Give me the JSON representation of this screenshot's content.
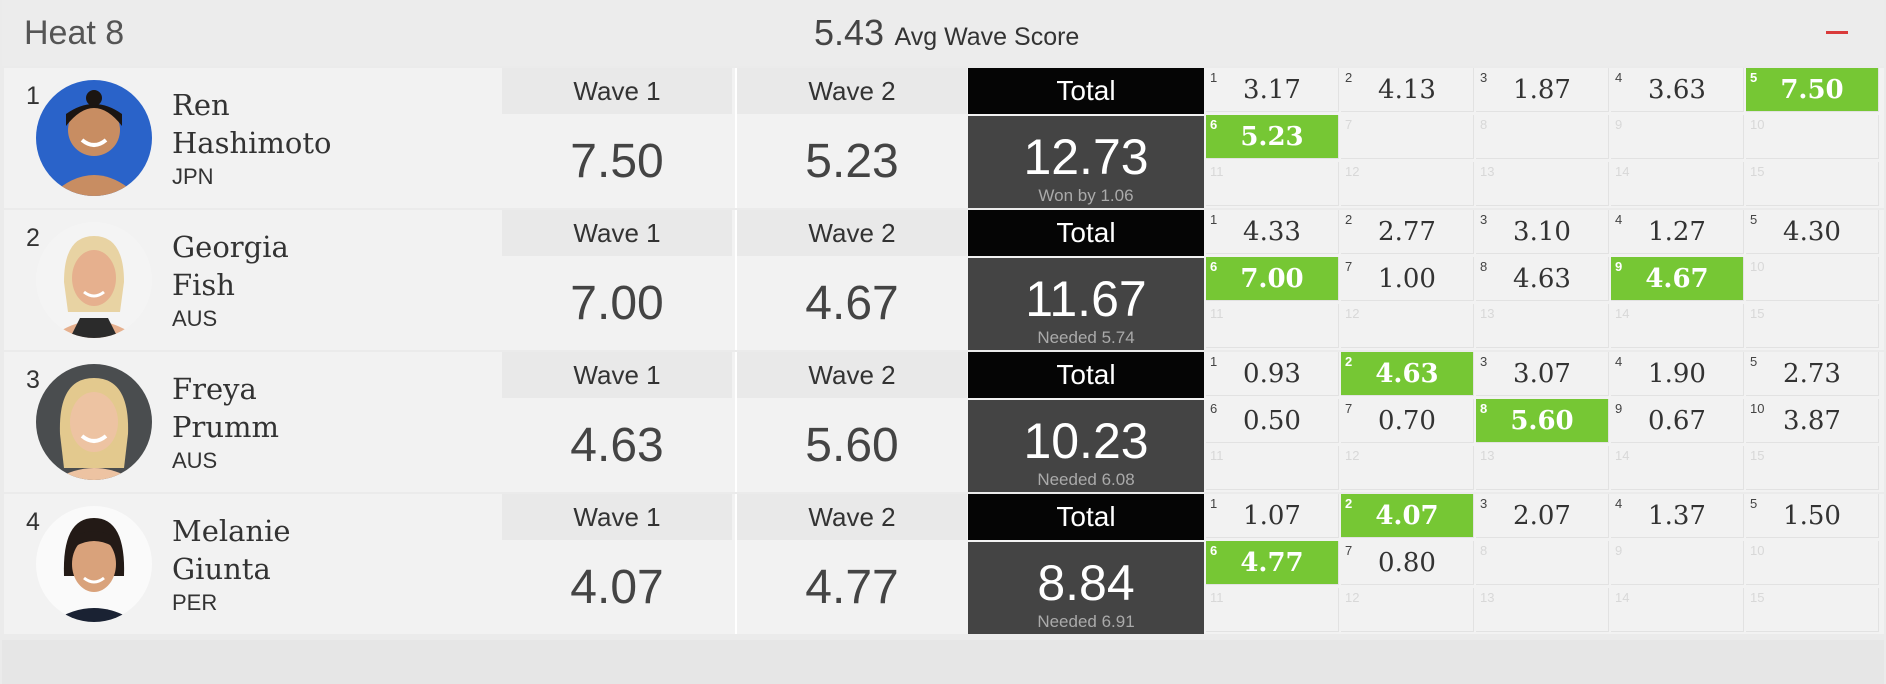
{
  "heat": {
    "title": "Heat 8",
    "avg_value": "5.43",
    "avg_label": "Avg Wave Score"
  },
  "columns": {
    "wave1": "Wave 1",
    "wave2": "Wave 2",
    "total": "Total"
  },
  "athletes": [
    {
      "rank": "1",
      "first": "Ren",
      "last": "Hashimoto",
      "country": "JPN",
      "wave1": "7.50",
      "wave2": "5.23",
      "total": "12.73",
      "note": "Won by 1.06",
      "waves": [
        {
          "i": "1",
          "v": "3.17"
        },
        {
          "i": "2",
          "v": "4.13"
        },
        {
          "i": "3",
          "v": "1.87"
        },
        {
          "i": "4",
          "v": "3.63"
        },
        {
          "i": "5",
          "v": "7.50",
          "c": true
        },
        {
          "i": "6",
          "v": "5.23",
          "c": true
        },
        {
          "i": "7",
          "v": ""
        },
        {
          "i": "8",
          "v": ""
        },
        {
          "i": "9",
          "v": ""
        },
        {
          "i": "10",
          "v": ""
        },
        {
          "i": "11",
          "v": ""
        },
        {
          "i": "12",
          "v": ""
        },
        {
          "i": "13",
          "v": ""
        },
        {
          "i": "14",
          "v": ""
        },
        {
          "i": "15",
          "v": ""
        }
      ]
    },
    {
      "rank": "2",
      "first": "Georgia",
      "last": "Fish",
      "country": "AUS",
      "wave1": "7.00",
      "wave2": "4.67",
      "total": "11.67",
      "note": "Needed 5.74",
      "waves": [
        {
          "i": "1",
          "v": "4.33"
        },
        {
          "i": "2",
          "v": "2.77"
        },
        {
          "i": "3",
          "v": "3.10"
        },
        {
          "i": "4",
          "v": "1.27"
        },
        {
          "i": "5",
          "v": "4.30"
        },
        {
          "i": "6",
          "v": "7.00",
          "c": true
        },
        {
          "i": "7",
          "v": "1.00"
        },
        {
          "i": "8",
          "v": "4.63"
        },
        {
          "i": "9",
          "v": "4.67",
          "c": true
        },
        {
          "i": "10",
          "v": ""
        },
        {
          "i": "11",
          "v": ""
        },
        {
          "i": "12",
          "v": ""
        },
        {
          "i": "13",
          "v": ""
        },
        {
          "i": "14",
          "v": ""
        },
        {
          "i": "15",
          "v": ""
        }
      ]
    },
    {
      "rank": "3",
      "first": "Freya",
      "last": "Prumm",
      "country": "AUS",
      "wave1": "4.63",
      "wave2": "5.60",
      "total": "10.23",
      "note": "Needed 6.08",
      "waves": [
        {
          "i": "1",
          "v": "0.93"
        },
        {
          "i": "2",
          "v": "4.63",
          "c": true
        },
        {
          "i": "3",
          "v": "3.07"
        },
        {
          "i": "4",
          "v": "1.90"
        },
        {
          "i": "5",
          "v": "2.73"
        },
        {
          "i": "6",
          "v": "0.50"
        },
        {
          "i": "7",
          "v": "0.70"
        },
        {
          "i": "8",
          "v": "5.60",
          "c": true
        },
        {
          "i": "9",
          "v": "0.67"
        },
        {
          "i": "10",
          "v": "3.87"
        },
        {
          "i": "11",
          "v": ""
        },
        {
          "i": "12",
          "v": ""
        },
        {
          "i": "13",
          "v": ""
        },
        {
          "i": "14",
          "v": ""
        },
        {
          "i": "15",
          "v": ""
        }
      ]
    },
    {
      "rank": "4",
      "first": "Melanie",
      "last": "Giunta",
      "country": "PER",
      "wave1": "4.07",
      "wave2": "4.77",
      "total": "8.84",
      "note": "Needed 6.91",
      "waves": [
        {
          "i": "1",
          "v": "1.07"
        },
        {
          "i": "2",
          "v": "4.07",
          "c": true
        },
        {
          "i": "3",
          "v": "2.07"
        },
        {
          "i": "4",
          "v": "1.37"
        },
        {
          "i": "5",
          "v": "1.50"
        },
        {
          "i": "6",
          "v": "4.77",
          "c": true
        },
        {
          "i": "7",
          "v": "0.80"
        },
        {
          "i": "8",
          "v": ""
        },
        {
          "i": "9",
          "v": ""
        },
        {
          "i": "10",
          "v": ""
        },
        {
          "i": "11",
          "v": ""
        },
        {
          "i": "12",
          "v": ""
        },
        {
          "i": "13",
          "v": ""
        },
        {
          "i": "14",
          "v": ""
        },
        {
          "i": "15",
          "v": ""
        }
      ]
    }
  ],
  "colors": {
    "counting": "#76c734",
    "total_head": "#050505",
    "total_box": "#444444",
    "collapse": "#d93a3a"
  },
  "icons": {
    "collapse": "minus-icon"
  }
}
